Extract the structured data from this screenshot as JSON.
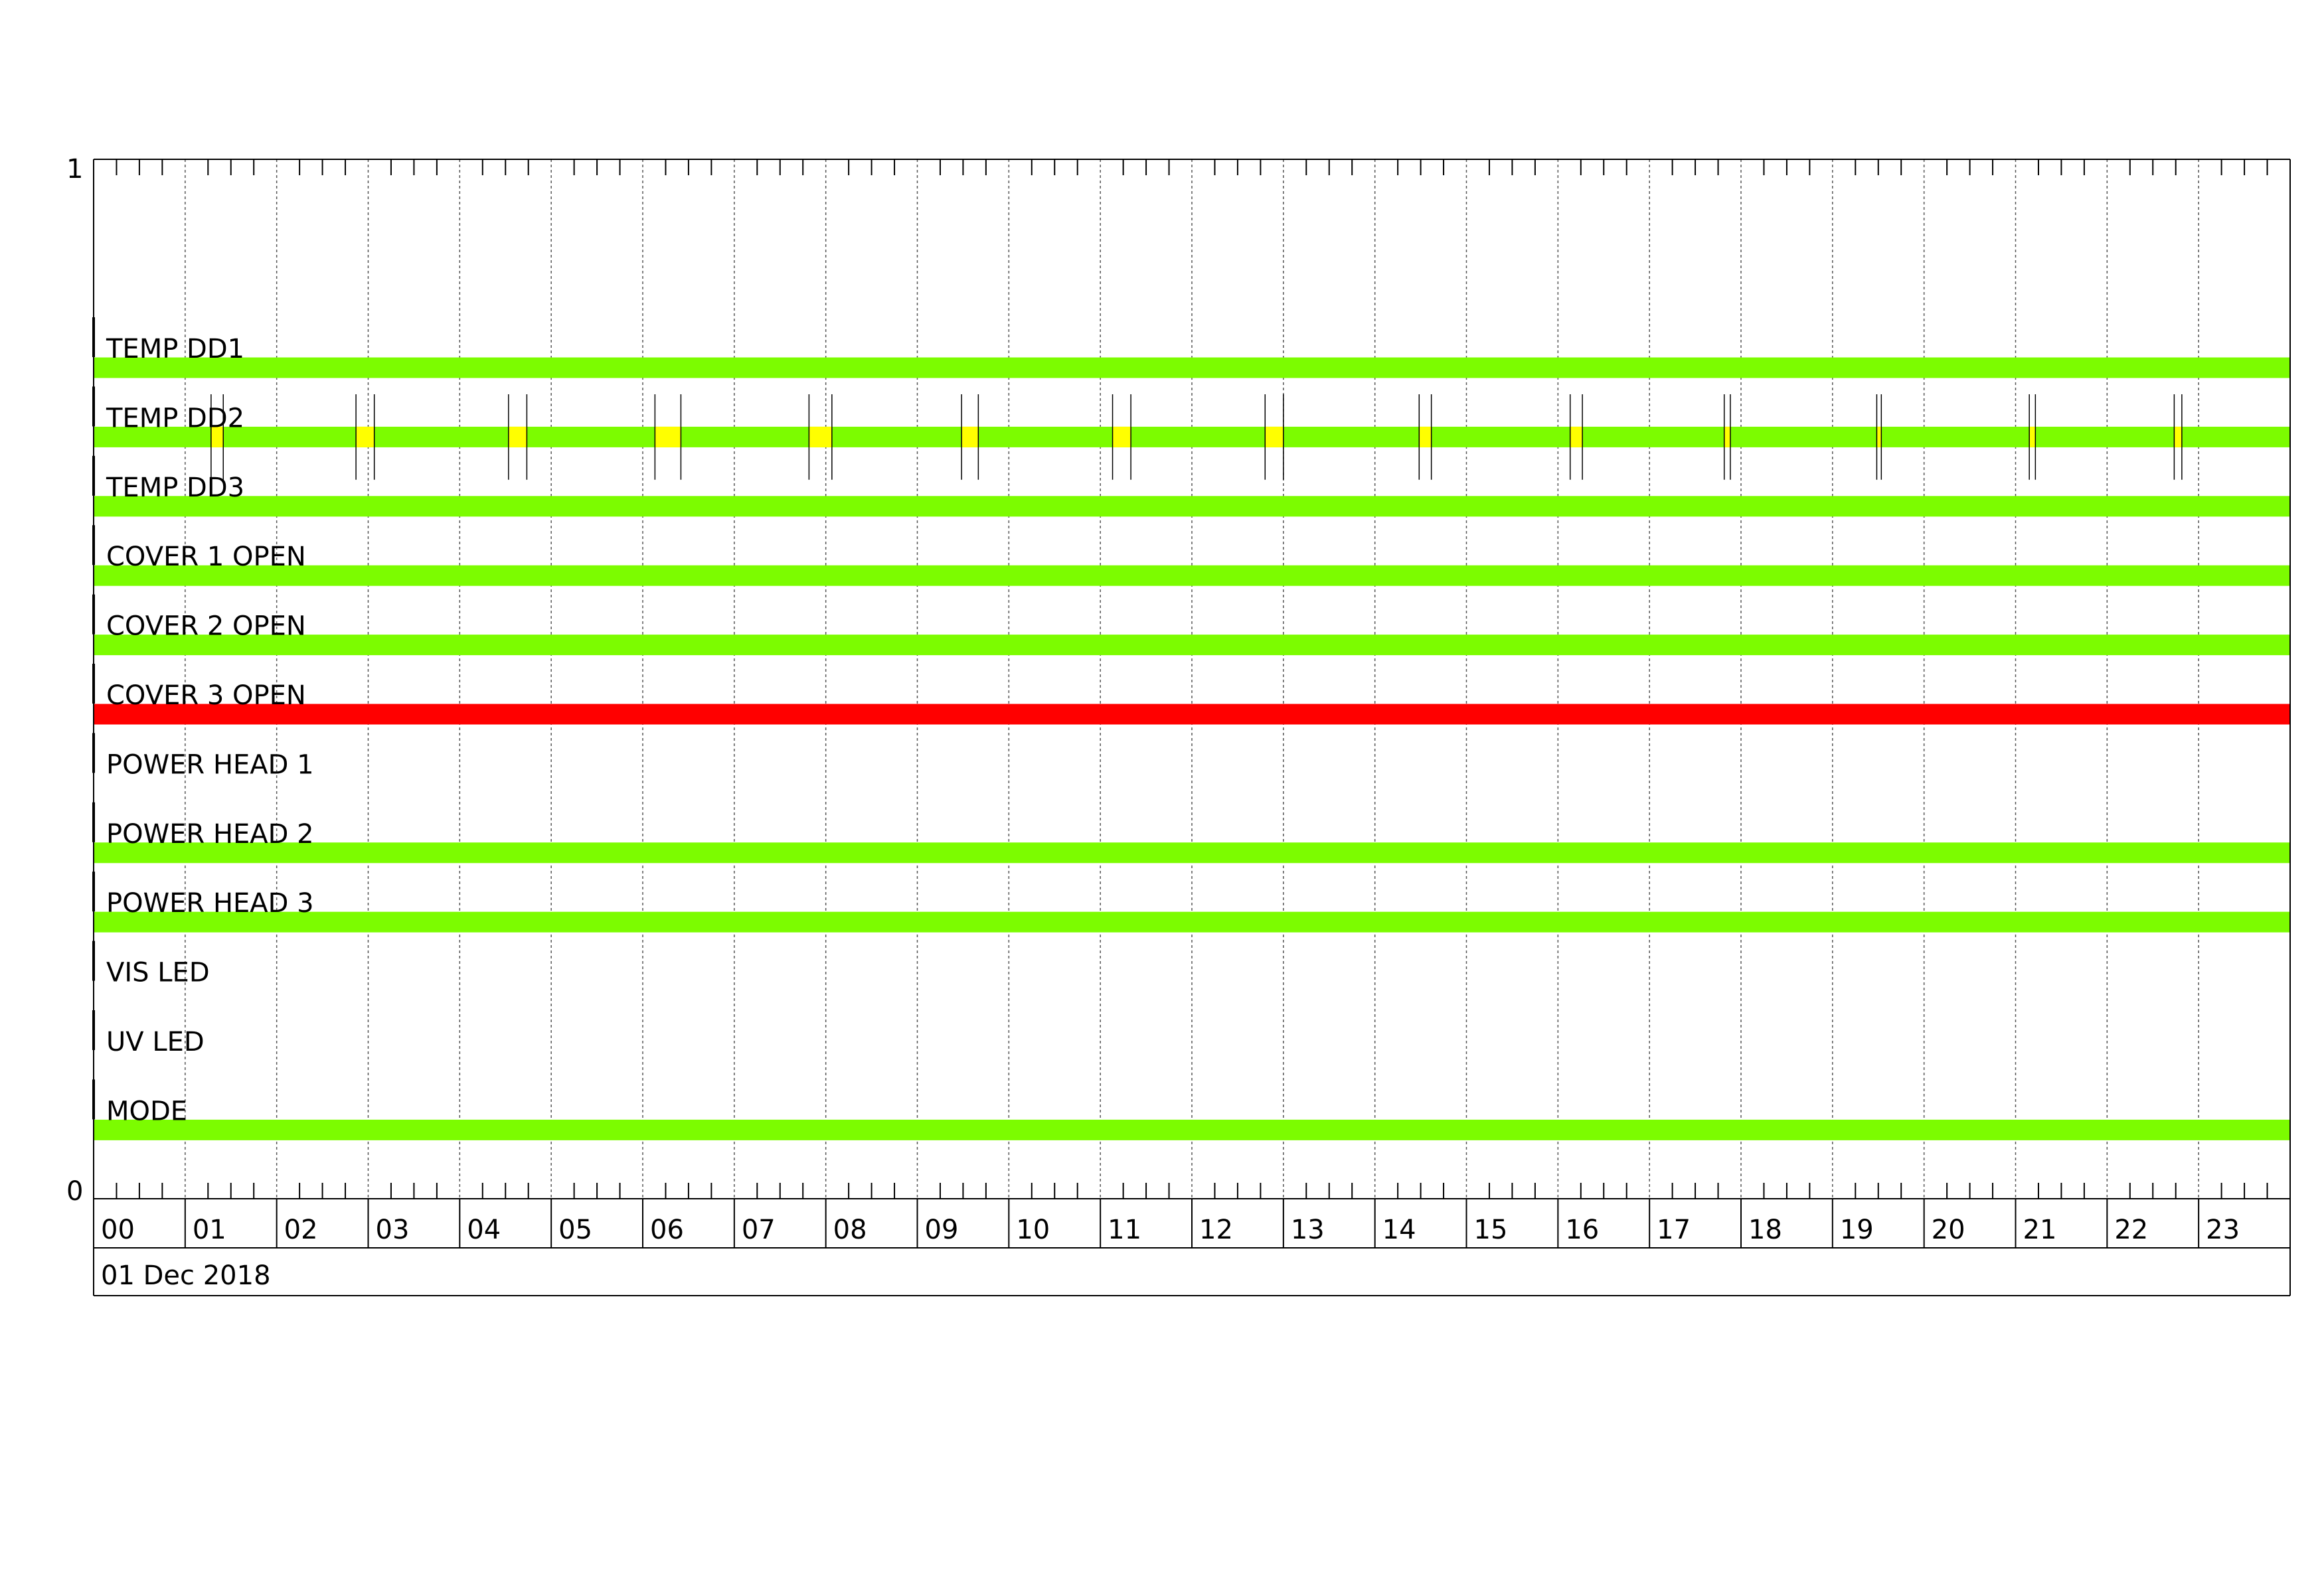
{
  "chart_data": {
    "type": "timeline",
    "y_axis": {
      "top_label": "1",
      "bottom_label": "0"
    },
    "x_axis": {
      "range_hours": [
        0,
        24
      ],
      "tick_labels": [
        "00",
        "01",
        "02",
        "03",
        "04",
        "05",
        "06",
        "07",
        "08",
        "09",
        "10",
        "11",
        "12",
        "13",
        "14",
        "15",
        "16",
        "17",
        "18",
        "19",
        "20",
        "21",
        "22",
        "23"
      ],
      "date_label": "01 Dec 2018",
      "grid": "dotted hourly",
      "minor_ticks_minutes": 15
    },
    "colors": {
      "ok": "#7cfc00",
      "warning": "#ffff00",
      "alarm": "#ff0000",
      "grid": "#000000"
    },
    "rows": [
      {
        "label": "TEMP  DD1",
        "segments": [
          {
            "start": "00:00",
            "end": "24:00",
            "state": "ok"
          }
        ]
      },
      {
        "label": "TEMP  DD2",
        "segments": [
          {
            "start": "00:00",
            "end": "24:00",
            "state": "ok"
          }
        ],
        "events": [
          {
            "start": "01:17",
            "end": "01:25",
            "state": "warning"
          },
          {
            "start": "02:52",
            "end": "03:04",
            "state": "warning"
          },
          {
            "start": "04:32",
            "end": "04:44",
            "state": "warning"
          },
          {
            "start": "06:08",
            "end": "06:25",
            "state": "warning"
          },
          {
            "start": "07:49",
            "end": "08:04",
            "state": "warning"
          },
          {
            "start": "09:29",
            "end": "09:40",
            "state": "warning"
          },
          {
            "start": "11:08",
            "end": "11:20",
            "state": "warning"
          },
          {
            "start": "12:48",
            "end": "13:00",
            "state": "warning"
          },
          {
            "start": "14:29",
            "end": "14:37",
            "state": "warning"
          },
          {
            "start": "16:08",
            "end": "16:16",
            "state": "warning"
          },
          {
            "start": "17:49",
            "end": "17:53",
            "state": "warning"
          },
          {
            "start": "19:29",
            "end": "19:32",
            "state": "warning"
          },
          {
            "start": "21:09",
            "end": "21:13",
            "state": "warning"
          },
          {
            "start": "22:44",
            "end": "22:49",
            "state": "warning"
          }
        ]
      },
      {
        "label": "TEMP  DD3",
        "segments": [
          {
            "start": "00:00",
            "end": "24:00",
            "state": "ok"
          }
        ]
      },
      {
        "label": "COVER  1  OPEN",
        "segments": [
          {
            "start": "00:00",
            "end": "24:00",
            "state": "ok"
          }
        ]
      },
      {
        "label": "COVER  2  OPEN",
        "segments": [
          {
            "start": "00:00",
            "end": "24:00",
            "state": "ok"
          }
        ]
      },
      {
        "label": "COVER  3  OPEN",
        "segments": [
          {
            "start": "00:00",
            "end": "24:00",
            "state": "alarm"
          }
        ]
      },
      {
        "label": "POWER  HEAD  1",
        "segments": []
      },
      {
        "label": "POWER  HEAD  2",
        "segments": [
          {
            "start": "00:00",
            "end": "24:00",
            "state": "ok"
          }
        ]
      },
      {
        "label": "POWER  HEAD  3",
        "segments": [
          {
            "start": "00:00",
            "end": "24:00",
            "state": "ok"
          }
        ]
      },
      {
        "label": "VIS  LED",
        "segments": []
      },
      {
        "label": "UV  LED",
        "segments": []
      },
      {
        "label": "MODE",
        "segments": [
          {
            "start": "00:00",
            "end": "24:00",
            "state": "ok"
          }
        ]
      }
    ]
  }
}
